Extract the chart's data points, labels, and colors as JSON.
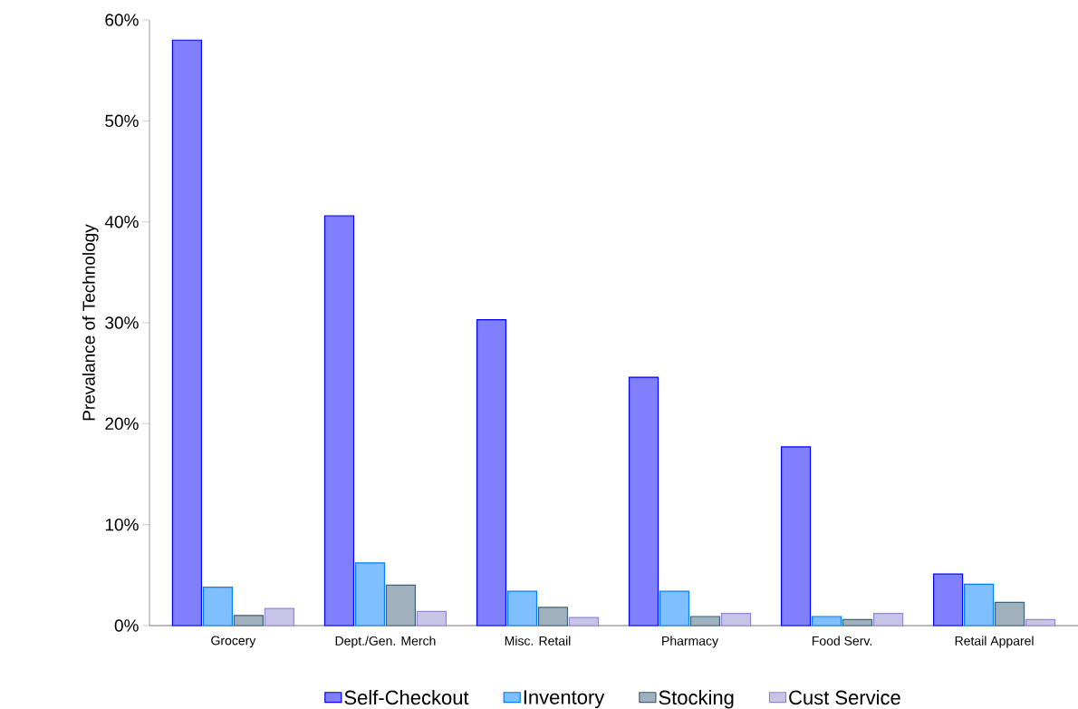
{
  "chart_data": {
    "type": "bar",
    "ylabel": "Prevalance of Technology",
    "categories": [
      "Grocery",
      "Dept./Gen. Merch",
      "Misc. Retail",
      "Pharmacy",
      "Food Serv.",
      "Retail Apparel"
    ],
    "series": [
      {
        "name": "Self-Checkout",
        "color": "#8080ff",
        "values": [
          58.0,
          40.6,
          30.3,
          24.6,
          17.7,
          5.1
        ]
      },
      {
        "name": "Inventory",
        "color": "#80bfff",
        "values": [
          3.8,
          6.2,
          3.4,
          3.4,
          0.9,
          4.1
        ]
      },
      {
        "name": "Stocking",
        "color": "#a0b0bc",
        "values": [
          1.0,
          4.0,
          1.8,
          0.9,
          0.6,
          2.3
        ]
      },
      {
        "name": "Cust Service",
        "color": "#c8c4e8",
        "values": [
          1.7,
          1.4,
          0.8,
          1.2,
          1.2,
          0.6
        ]
      }
    ],
    "ylim": [
      0,
      60
    ],
    "yticks": [
      {
        "value": 0,
        "label": "0%"
      },
      {
        "value": 10,
        "label": "10%"
      },
      {
        "value": 20,
        "label": "20%"
      },
      {
        "value": 30,
        "label": "30%"
      },
      {
        "value": 40,
        "label": "40%"
      },
      {
        "value": 50,
        "label": "50%"
      },
      {
        "value": 60,
        "label": "60%"
      }
    ],
    "grid": false,
    "legend": "bottom"
  }
}
